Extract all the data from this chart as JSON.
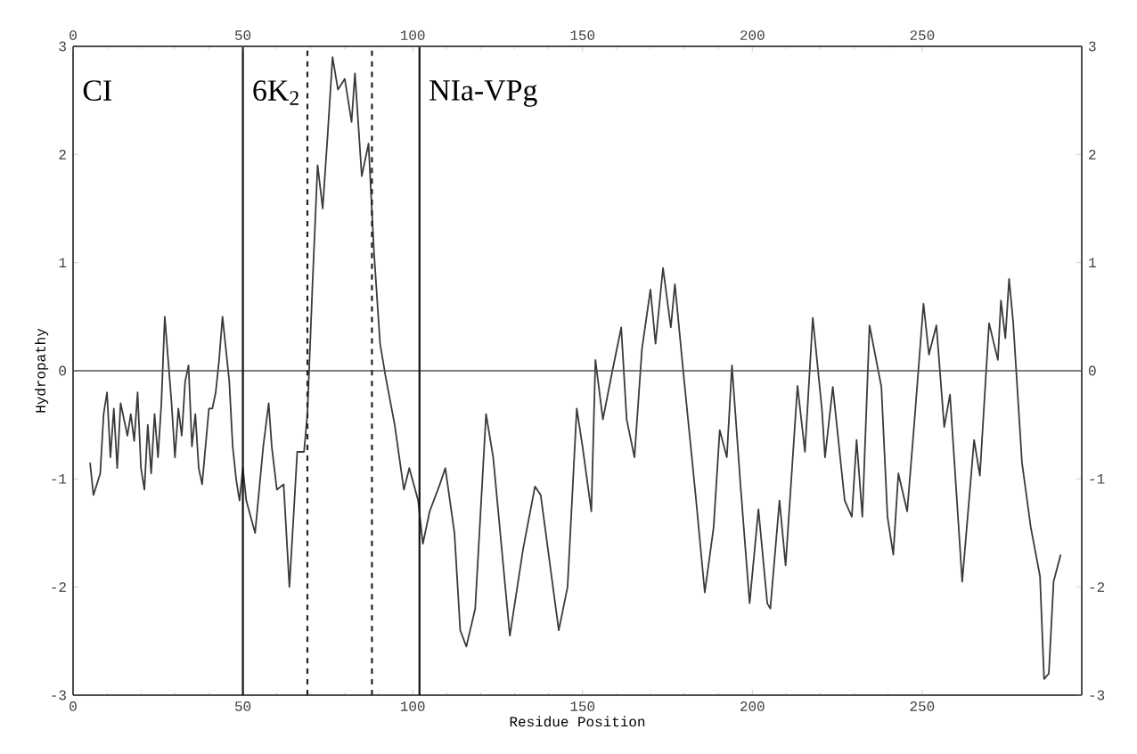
{
  "chart_data": {
    "type": "line",
    "xlabel": "Residue Position",
    "ylabel": "Hydropathy",
    "x": [
      5,
      6,
      8,
      9,
      10,
      11,
      12,
      13,
      14,
      16,
      17,
      18,
      19,
      20,
      21,
      22,
      23,
      24,
      25,
      26,
      27,
      28,
      29,
      30,
      31,
      32,
      33,
      34,
      35,
      36,
      37,
      38,
      39,
      40,
      41,
      42,
      43,
      44,
      45,
      46,
      47,
      48,
      49,
      50,
      51,
      53.6,
      56,
      57.6,
      58.5,
      60,
      62,
      63.7,
      65,
      66,
      68,
      69,
      70.5,
      72,
      73.5,
      75,
      76.4,
      78,
      80,
      82,
      83,
      85,
      87,
      88.6,
      90.4,
      92,
      94.7,
      97.4,
      99,
      101.6,
      103,
      105,
      108,
      109.6,
      112.3,
      114,
      115.8,
      118.4,
      121.6,
      123.7,
      128.6,
      132.5,
      136,
      137.7,
      143,
      145.6,
      148.3,
      150,
      152.6,
      153.8,
      156,
      158.8,
      161.4,
      163,
      165.3,
      167.5,
      170,
      171.5,
      173.7,
      176,
      177.2,
      179.8,
      183.3,
      186,
      188.6,
      190.4,
      192.5,
      194,
      196.5,
      199.2,
      201.8,
      204.4,
      205.3,
      208,
      209.8,
      213.3,
      215.5,
      217.8,
      220.5,
      221.4,
      223.7,
      227.2,
      229.3,
      230.7,
      232.4,
      234.5,
      238,
      239.8,
      241.5,
      243,
      245.6,
      247.7,
      250.4,
      252,
      254.2,
      256.5,
      258.2,
      261.8,
      265.3,
      267,
      269.7,
      272.3,
      273.2,
      274.5,
      275.6,
      276.8,
      279.4,
      282,
      284.7,
      285.9,
      287.3,
      288.7,
      290.8
    ],
    "series": [
      {
        "color": "#3a3a3a",
        "values": [
          -0.85,
          -1.15,
          -0.95,
          -0.4,
          -0.2,
          -0.8,
          -0.35,
          -0.9,
          -0.3,
          -0.6,
          -0.4,
          -0.65,
          -0.2,
          -0.9,
          -1.1,
          -0.5,
          -0.95,
          -0.4,
          -0.8,
          -0.3,
          0.5,
          0.1,
          -0.3,
          -0.8,
          -0.35,
          -0.6,
          -0.1,
          0.05,
          -0.7,
          -0.4,
          -0.9,
          -1.05,
          -0.7,
          -0.35,
          -0.35,
          -0.2,
          0.1,
          0.5,
          0.2,
          -0.1,
          -0.7,
          -1.0,
          -1.2,
          -0.9,
          -1.2,
          -1.5,
          -0.7,
          -0.3,
          -0.7,
          -1.1,
          -1.05,
          -2.0,
          -1.3,
          -0.75,
          -0.75,
          -0.4,
          0.8,
          1.9,
          1.5,
          2.2,
          2.9,
          2.6,
          2.7,
          2.3,
          2.75,
          1.8,
          2.1,
          1.1,
          0.25,
          -0.05,
          -0.5,
          -1.1,
          -0.9,
          -1.2,
          -1.6,
          -1.3,
          -1.05,
          -0.9,
          -1.5,
          -2.4,
          -2.55,
          -2.2,
          -0.4,
          -0.8,
          -2.45,
          -1.65,
          -1.07,
          -1.15,
          -2.4,
          -2.0,
          -0.35,
          -0.7,
          -1.3,
          0.1,
          -0.45,
          0,
          0.4,
          -0.45,
          -0.8,
          0.2,
          0.75,
          0.25,
          0.95,
          0.4,
          0.8,
          -0.05,
          -1.15,
          -2.05,
          -1.45,
          -0.55,
          -0.8,
          0.05,
          -1.05,
          -2.15,
          -1.28,
          -2.15,
          -2.2,
          -1.2,
          -1.8,
          -0.14,
          -0.75,
          0.49,
          -0.36,
          -0.8,
          -0.15,
          -1.2,
          -1.35,
          -0.64,
          -1.35,
          0.42,
          -0.15,
          -1.35,
          -1.7,
          -0.95,
          -1.3,
          -0.48,
          0.62,
          0.15,
          0.42,
          -0.52,
          -0.22,
          -1.95,
          -0.64,
          -0.97,
          0.44,
          0.1,
          0.65,
          0.3,
          0.85,
          0.45,
          -0.85,
          -1.45,
          -1.9,
          -2.85,
          -2.8,
          -1.95,
          -1.7
        ]
      }
    ],
    "xlim": [
      0,
      297
    ],
    "ylim": [
      -3,
      3
    ],
    "xticks": [
      0,
      50,
      100,
      150,
      200,
      250
    ],
    "yticks": [
      -3,
      -2,
      -1,
      0,
      1,
      2,
      3
    ],
    "x2lim": [
      0,
      297
    ],
    "x2ticks": [
      0,
      50,
      100,
      150,
      200,
      250
    ],
    "y2lim": [
      -3,
      3
    ],
    "y2ticks": [
      -3,
      -2,
      -1,
      0,
      1,
      2,
      3
    ],
    "ref_lines": [
      {
        "axis": "y",
        "value": 0,
        "color": "#555555",
        "line_style": "solid"
      },
      {
        "axis": "x",
        "value": 50,
        "color": "#111111",
        "line_style": "solid"
      },
      {
        "axis": "x",
        "value": 69,
        "color": "#222222",
        "line_style": "dashed"
      },
      {
        "axis": "x",
        "value": 88,
        "color": "#222222",
        "line_style": "dashed"
      },
      {
        "axis": "x",
        "value": 102,
        "color": "#111111",
        "line_style": "solid"
      }
    ],
    "annotations": [
      "CI",
      "6K$_{2}$",
      "NIa-VPg"
    ]
  }
}
